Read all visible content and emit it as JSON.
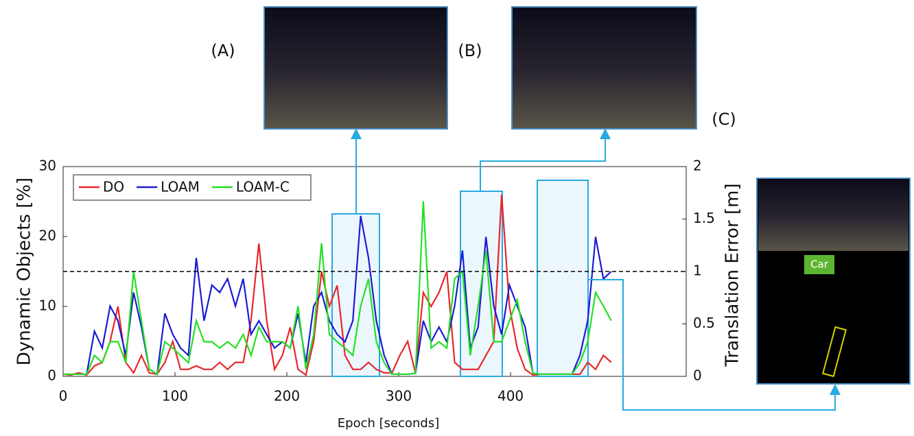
{
  "chart_data": {
    "type": "line",
    "xlabel": "Epoch [seconds]",
    "ylabel": "Dynamic Objects [%]",
    "y2label": "Translation Error [m]",
    "xlim": [
      0,
      557
    ],
    "xticks": [
      0,
      100,
      200,
      300,
      400
    ],
    "ylim": [
      0,
      30
    ],
    "yticks": [
      0,
      10,
      20,
      30
    ],
    "y2lim": [
      0,
      2
    ],
    "y2ticks": [
      0,
      0.5,
      1,
      1.5,
      2
    ],
    "threshold": 15,
    "legend": "upper left",
    "x": [
      0,
      7,
      14,
      21,
      28,
      35,
      42,
      49,
      56,
      63,
      70,
      77,
      84,
      91,
      98,
      105,
      112,
      119,
      126,
      133,
      140,
      147,
      154,
      161,
      168,
      175,
      182,
      189,
      196,
      203,
      210,
      217,
      224,
      231,
      238,
      245,
      252,
      259,
      266,
      273,
      280,
      287,
      294,
      301,
      308,
      315,
      322,
      329,
      336,
      343,
      350,
      357,
      364,
      371,
      378,
      385,
      392,
      399,
      406,
      413,
      420,
      427,
      434,
      441,
      448,
      455,
      462,
      469,
      476,
      483,
      490
    ],
    "series": [
      {
        "name": "DO",
        "color": "#e8262b",
        "values": [
          0.3,
          0.2,
          0.5,
          0.2,
          1.5,
          2,
          5,
          10,
          2,
          0.5,
          3,
          0.5,
          0.3,
          2,
          5,
          1,
          1,
          1.5,
          1,
          1,
          2,
          1,
          2,
          2,
          8,
          19,
          8,
          1,
          3,
          7,
          1,
          0.2,
          5,
          15,
          10,
          13,
          3,
          1,
          1,
          2,
          1,
          0.5,
          0.5,
          3,
          5,
          0.5,
          12,
          10,
          12,
          15,
          2,
          1,
          1,
          1,
          3,
          5,
          26,
          10,
          4,
          1,
          0.2,
          0.3,
          0.3,
          0.3,
          0.3,
          0.3,
          0.3,
          2,
          1,
          3,
          2
        ]
      },
      {
        "name": "LOAM",
        "color": "#1a1ad6",
        "axis": "y2",
        "values": [
          0.02,
          0.02,
          0.02,
          0.02,
          0.43,
          0.27,
          0.67,
          0.53,
          0.2,
          0.8,
          0.47,
          0.07,
          0.02,
          0.6,
          0.4,
          0.27,
          0.2,
          1.13,
          0.53,
          0.87,
          0.8,
          0.93,
          0.67,
          0.93,
          0.4,
          0.53,
          0.4,
          0.27,
          0.33,
          0.27,
          0.6,
          0.13,
          0.67,
          0.8,
          0.53,
          0.4,
          0.33,
          0.53,
          1.53,
          1.13,
          0.53,
          0.2,
          0.02,
          0.02,
          0.02,
          0.03,
          0.53,
          0.33,
          0.47,
          0.33,
          0.67,
          1.2,
          0.27,
          0.47,
          1.33,
          0.67,
          0.4,
          0.87,
          0.67,
          0.47,
          0.03,
          0.02,
          0.02,
          0.02,
          0.02,
          0.02,
          0.2,
          0.53,
          1.33,
          0.93,
          1.0
        ]
      },
      {
        "name": "LOAM-C",
        "color": "#22e022",
        "axis": "y2",
        "values": [
          0.02,
          0.02,
          0.02,
          0.02,
          0.2,
          0.13,
          0.33,
          0.33,
          0.13,
          1.0,
          0.53,
          0.07,
          0.02,
          0.33,
          0.27,
          0.2,
          0.13,
          0.53,
          0.33,
          0.33,
          0.27,
          0.33,
          0.27,
          0.4,
          0.2,
          0.47,
          0.33,
          0.33,
          0.33,
          0.27,
          0.67,
          0.07,
          0.4,
          1.27,
          0.4,
          0.33,
          0.27,
          0.2,
          0.67,
          0.93,
          0.33,
          0.13,
          0.02,
          0.02,
          0.02,
          0.03,
          1.67,
          0.27,
          0.33,
          0.27,
          0.93,
          1.0,
          0.2,
          0.67,
          1.2,
          0.33,
          0.33,
          0.53,
          0.73,
          0.33,
          0.03,
          0.02,
          0.02,
          0.02,
          0.02,
          0.02,
          0.13,
          0.33,
          0.8,
          0.67,
          0.53
        ]
      }
    ]
  },
  "annotations": {
    "a": "(A)",
    "b": "(B)",
    "c": "(C)",
    "car": "Car"
  }
}
